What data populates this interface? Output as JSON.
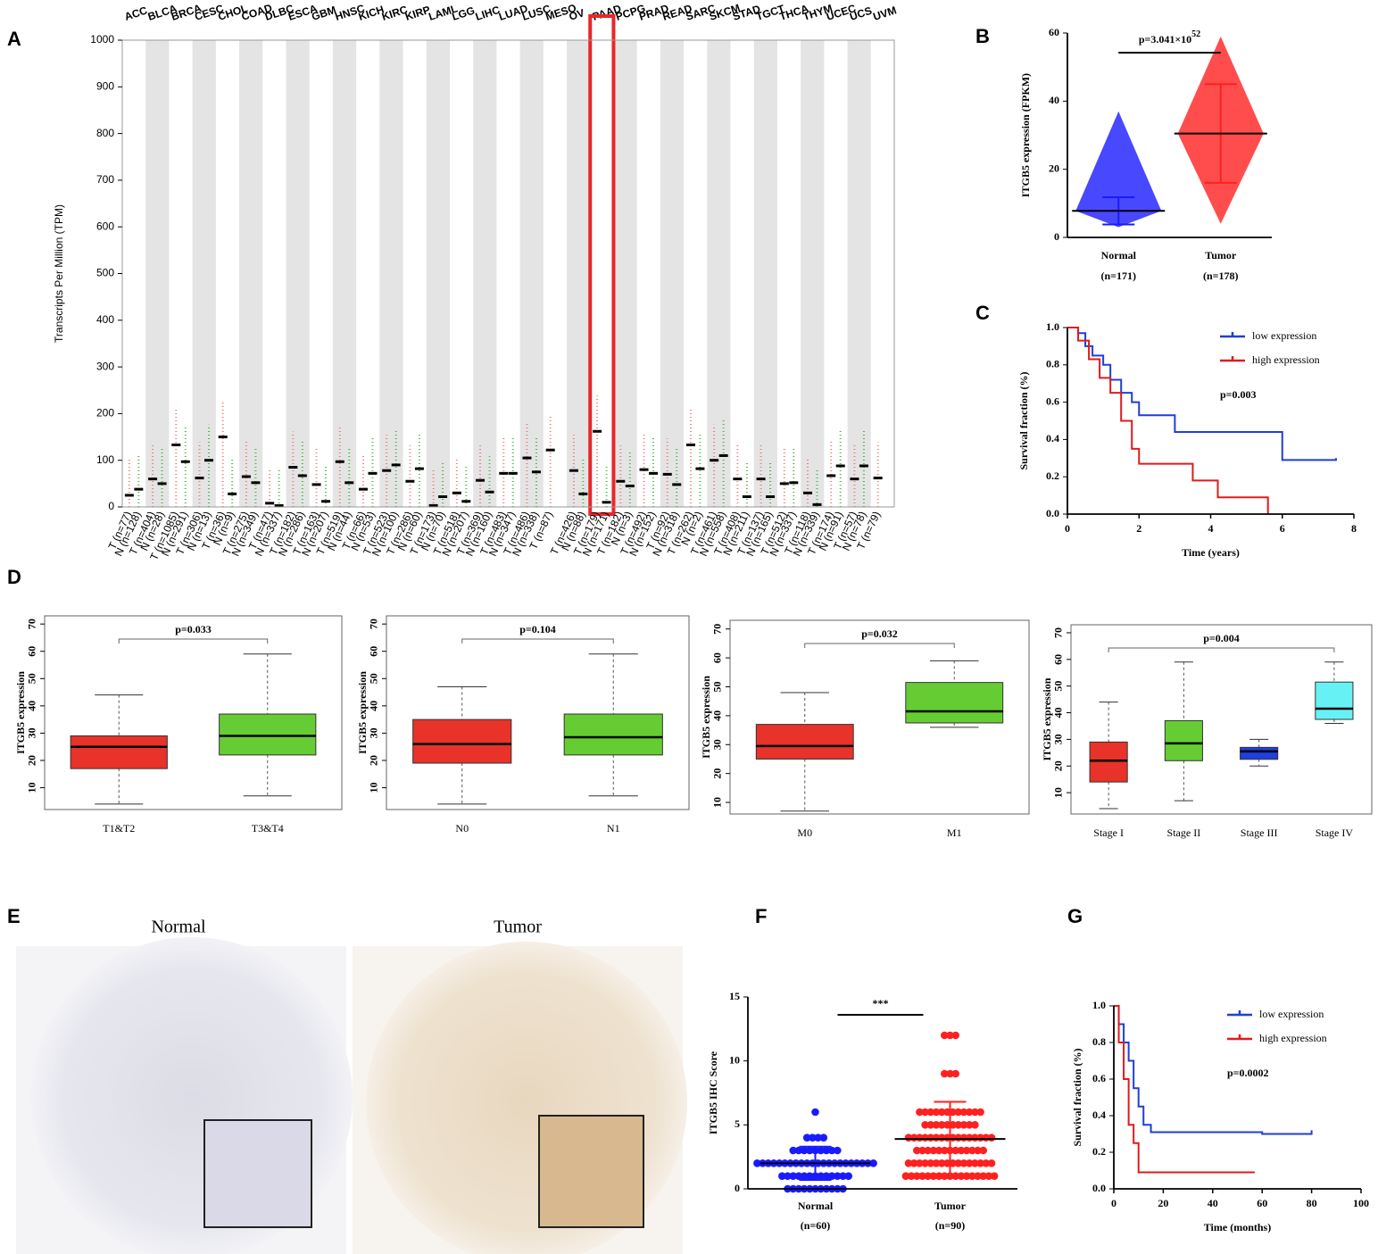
{
  "chart_data": [
    {
      "type": "median",
      "panel": "A",
      "ylabel": "Transcripts Per Million (TPM)",
      "ylim": [
        0,
        1000
      ],
      "yticks": [
        0,
        100,
        200,
        300,
        400,
        500,
        600,
        700,
        800,
        900,
        1000
      ],
      "categories": [
        "ACC",
        "BLCA",
        "BRCA",
        "CESC",
        "CHOL",
        "COAD",
        "DLBC",
        "ESCA",
        "GBM",
        "HNSC",
        "KICH",
        "KIRC",
        "KIRP",
        "LAML",
        "LGG",
        "LIHC",
        "LUAD",
        "LUSC",
        "MESO",
        "OV",
        "PAAD",
        "PCPG",
        "PRAD",
        "READ",
        "SARC",
        "SKCM",
        "STAD",
        "TGCT",
        "THCA",
        "THYM",
        "UCEC",
        "UCS",
        "UVM"
      ],
      "category_colors": [
        "#000000",
        "#000000",
        "#000000",
        "#000000",
        "#000000",
        "#000000",
        "#ff5050",
        "#000000",
        "#ff5050",
        "#000000",
        "#000000",
        "#000000",
        "#000000",
        "#22aa22",
        "#ff5050",
        "#000000",
        "#000000",
        "#000000",
        "#000000",
        "#ff5050",
        "#ff5050",
        "#000000",
        "#000000",
        "#000000",
        "#000000",
        "#000000",
        "#ff5050",
        "#ff5050",
        "#000000",
        "#ff5050",
        "#000000",
        "#000000",
        "#000000"
      ],
      "highlight": "PAAD",
      "highlight_color": "#e8262a",
      "series": [
        {
          "color": "#f06060",
          "values": [
            25,
            60,
            133,
            62,
            150,
            65,
            8,
            85,
            48,
            97,
            38,
            78,
            55,
            3,
            30,
            57,
            72,
            105,
            122,
            78,
            162,
            55,
            80,
            70,
            133,
            100,
            60,
            60,
            50,
            30,
            67,
            60,
            62
          ],
          "labels": [
            "T (n=77)",
            "T (n=404)",
            "T (n=1085)",
            "T (n=306)",
            "T (n=36)",
            "T (n=275)",
            "T (n=47)",
            "T (n=182)",
            "T (n=163)",
            "T (n=519)",
            "T (n=66)",
            "T (n=523)",
            "T (n=286)",
            "T (n=173)",
            "T (n=518)",
            "T (n=369)",
            "T (n=483)",
            "T (n=486)",
            "T (n=87)",
            "T (n=426)",
            "T (n=179)",
            "T (n=182)",
            "T (n=492)",
            "T (n=92)",
            "T (n=262)",
            "T (n=461)",
            "T (n=408)",
            "T (n=137)",
            "T (n=512)",
            "T (n=118)",
            "T (n=174)",
            "T (n=57)",
            "T (n=79)"
          ]
        },
        {
          "color": "#22aa22",
          "values": [
            38,
            50,
            97,
            100,
            28,
            52,
            3,
            67,
            12,
            52,
            72,
            90,
            82,
            22,
            12,
            32,
            72,
            75,
            null,
            28,
            10,
            45,
            72,
            48,
            82,
            110,
            22,
            22,
            52,
            5,
            88,
            88,
            null
          ],
          "labels": [
            "N (n=128)",
            "N (n=28)",
            "N (n=291)",
            "N (n=13)",
            "N (n=9)",
            "N (n=349)",
            "N (n=337)",
            "N (n=286)",
            "N (n=207)",
            "N (n=44)",
            "N (n=53)",
            "N (n=100)",
            "N (n=60)",
            "N (n=70)",
            "N (n=207)",
            "N (n=160)",
            "N (n=347)",
            "N (n=338)",
            null,
            "N (n=88)",
            "N (n=171)",
            "N (n=3)",
            "N (n=152)",
            "N (n=318)",
            "N (n=2)",
            "N (n=558)",
            "N (n=211)",
            "N (n=165)",
            "N (n=337)",
            "N (n=339)",
            "N (n=91)",
            "N (n=78)",
            null
          ]
        }
      ]
    },
    {
      "type": "dot",
      "panel": "B",
      "ylabel": "ITGB5 expression (FPKM)",
      "ylim": [
        0,
        60
      ],
      "yticks": [
        0,
        20,
        40,
        60
      ],
      "categories": [
        "Normal",
        "Tumor"
      ],
      "category_counts": [
        "(n=171)",
        "(n=178)"
      ],
      "colors": [
        "#1a1aff",
        "#ff2020"
      ],
      "mean": [
        7.8,
        30.5
      ],
      "error": [
        4,
        14.5
      ],
      "min": [
        3,
        4
      ],
      "max": [
        37,
        59
      ],
      "annotation": {
        "text": "p=3.041×10",
        "sup": "52"
      }
    },
    {
      "type": "step",
      "panel": "C",
      "xlabel": "Time (years)",
      "ylabel": "Survival fraction (%)",
      "xlim": [
        0,
        8
      ],
      "xticks": [
        0,
        2,
        4,
        6,
        8
      ],
      "ylim": [
        0,
        1
      ],
      "yticks": [
        {
          "value": 0,
          "label": "0.0"
        },
        0.2,
        0.4,
        0.6,
        0.8,
        {
          "value": 1,
          "label": "1.0"
        }
      ],
      "legend": "upper right",
      "annotation": "p=0.003",
      "series": [
        {
          "name": "low expression",
          "color": "#1f3fd6",
          "x": [
            0,
            0.3,
            0.5,
            0.7,
            1,
            1.2,
            1.5,
            1.8,
            2,
            3,
            6,
            7.5
          ],
          "values": [
            1,
            0.97,
            0.9,
            0.85,
            0.8,
            0.72,
            0.65,
            0.6,
            0.53,
            0.44,
            0.29,
            0.3
          ]
        },
        {
          "name": "high expression",
          "color": "#e01b1b",
          "x": [
            0,
            0.3,
            0.6,
            0.9,
            1.2,
            1.5,
            1.8,
            2,
            3.5,
            4.2,
            5.6
          ],
          "values": [
            1,
            0.93,
            0.83,
            0.73,
            0.65,
            0.5,
            0.35,
            0.27,
            0.18,
            0.09,
            0
          ]
        }
      ]
    },
    {
      "type": "box",
      "panel": "D",
      "ylabel": "ITGB5 expression",
      "ylim": [
        2,
        73
      ],
      "yticks": [
        10,
        20,
        30,
        40,
        50,
        60,
        70
      ],
      "categories": [
        "T1&T2",
        "T3&T4"
      ],
      "colors": [
        "#e8322a",
        "#66cc33"
      ],
      "annotation": "p=0.033",
      "min": [
        4,
        7
      ],
      "q1": [
        17,
        22
      ],
      "median": [
        25,
        29
      ],
      "q3": [
        29,
        37
      ],
      "max": [
        44,
        59
      ]
    },
    {
      "type": "box",
      "ylabel": "ITGB5 expression",
      "ylim": [
        2,
        73
      ],
      "yticks": [
        10,
        20,
        30,
        40,
        50,
        60,
        70
      ],
      "categories": [
        "N0",
        "N1"
      ],
      "colors": [
        "#e8322a",
        "#66cc33"
      ],
      "annotation": "p=0.104",
      "min": [
        4,
        7
      ],
      "q1": [
        19,
        22
      ],
      "median": [
        26,
        28.5
      ],
      "q3": [
        35,
        37
      ],
      "max": [
        47,
        59
      ]
    },
    {
      "type": "box",
      "ylabel": "ITGB5 expression",
      "ylim": [
        6,
        73
      ],
      "yticks": [
        10,
        20,
        30,
        40,
        50,
        60,
        70
      ],
      "categories": [
        "M0",
        "M1"
      ],
      "colors": [
        "#e8322a",
        "#66cc33"
      ],
      "annotation": "p=0.032",
      "min": [
        7,
        36
      ],
      "q1": [
        25,
        37.5
      ],
      "median": [
        29.5,
        41.5
      ],
      "q3": [
        37,
        51.5
      ],
      "max": [
        48,
        59
      ]
    },
    {
      "type": "box",
      "ylabel": "ITGB5 expression",
      "ylim": [
        2,
        73
      ],
      "yticks": [
        10,
        20,
        30,
        40,
        50,
        60,
        70
      ],
      "categories": [
        "Stage I",
        "Stage II",
        "Stage III",
        "Stage IV"
      ],
      "colors": [
        "#e8322a",
        "#66cc33",
        "#1f3fe0",
        "#66f2f5"
      ],
      "annotation": "p=0.004",
      "min": [
        4,
        7,
        20,
        36
      ],
      "q1": [
        14,
        22,
        22.5,
        37.5
      ],
      "median": [
        22,
        28.5,
        25.5,
        41.5
      ],
      "q3": [
        29,
        37,
        27,
        51.5
      ],
      "max": [
        44,
        59,
        30,
        59
      ]
    },
    {
      "type": "swarm",
      "panel": "F",
      "ylabel": "ITGB5 IHC Score",
      "ylim": [
        0,
        15
      ],
      "yticks": [
        0,
        5,
        10,
        15
      ],
      "categories": [
        "Normal",
        "Tumor"
      ],
      "category_counts": [
        "(n=60)",
        "(n=90)"
      ],
      "colors": [
        "#1a1aff",
        "#ff2020"
      ],
      "annotation": "***",
      "groups": [
        {
          "scores": [
            0,
            1,
            2,
            3,
            4,
            6
          ],
          "counts": [
            11,
            13,
            22,
            9,
            4,
            1
          ],
          "mean": 2,
          "error": 1.3
        },
        {
          "scores": [
            1,
            2,
            3,
            4,
            5,
            6,
            9,
            12
          ],
          "counts": [
            17,
            16,
            13,
            16,
            10,
            12,
            3,
            3
          ],
          "mean": 3.9,
          "error": 2.9
        }
      ]
    },
    {
      "type": "step",
      "panel": "G",
      "xlabel": "Time (months)",
      "ylabel": "Survival fraction (%)",
      "xlim": [
        0,
        100
      ],
      "xticks": [
        0,
        20,
        40,
        60,
        80,
        100
      ],
      "ylim": [
        0,
        1
      ],
      "yticks": [
        {
          "value": 0,
          "label": "0.0"
        },
        0.2,
        0.4,
        0.6,
        0.8,
        {
          "value": 1,
          "label": "1.0"
        }
      ],
      "legend": "upper right",
      "annotation": "p=0.0002",
      "series": [
        {
          "name": "low expression",
          "color": "#1f3fd6",
          "x": [
            0,
            2,
            4,
            6,
            8,
            10,
            12,
            15,
            60,
            80
          ],
          "values": [
            1,
            0.9,
            0.8,
            0.7,
            0.55,
            0.45,
            0.35,
            0.31,
            0.3,
            0.32
          ]
        },
        {
          "name": "high expression",
          "color": "#e01b1b",
          "x": [
            0,
            2,
            4,
            6,
            8,
            10,
            57
          ],
          "values": [
            1,
            0.8,
            0.6,
            0.35,
            0.25,
            0.09,
            0.09
          ]
        }
      ]
    }
  ],
  "image_panel": {
    "panel": "E",
    "labels": [
      "Normal",
      "Tumor"
    ]
  }
}
